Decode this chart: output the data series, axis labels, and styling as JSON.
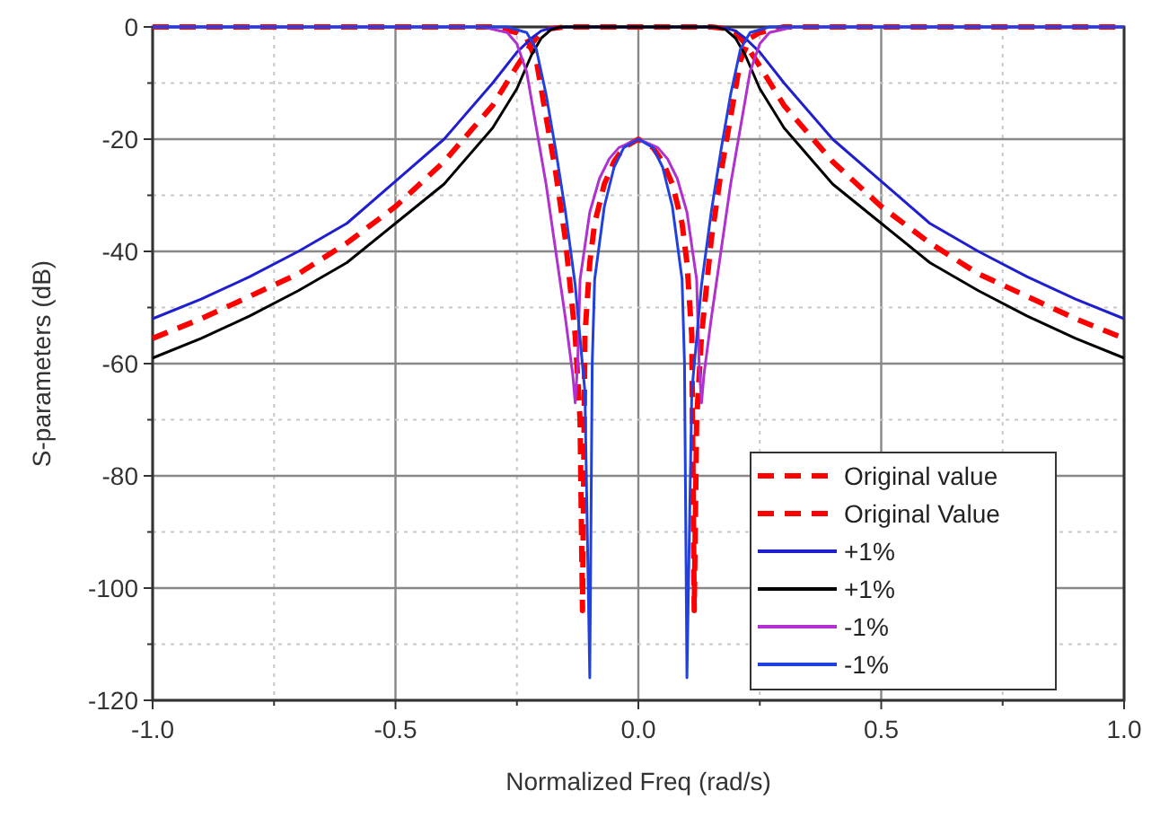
{
  "chart_data": {
    "type": "line",
    "xlabel": "Normalized Freq (rad/s)",
    "ylabel": "S-parameters (dB)",
    "xlim": [
      -1,
      1
    ],
    "ylim": [
      -120,
      0
    ],
    "xticks": [
      {
        "value": -1,
        "label": "-1.0"
      },
      {
        "value": -0.75,
        "label": null
      },
      {
        "value": -0.5,
        "label": "-0.5"
      },
      {
        "value": -0.25,
        "label": null
      },
      {
        "value": 0,
        "label": "0.0"
      },
      {
        "value": 0.25,
        "label": null
      },
      {
        "value": 0.5,
        "label": "0.5"
      },
      {
        "value": 0.75,
        "label": null
      },
      {
        "value": 1,
        "label": "1.0"
      }
    ],
    "yticks": [
      -120,
      {
        "value": -110,
        "label": null
      },
      -100,
      {
        "value": -90,
        "label": null
      },
      -80,
      {
        "value": -70,
        "label": null
      },
      -60,
      {
        "value": -50,
        "label": null
      },
      -40,
      {
        "value": -30,
        "label": null
      },
      -20,
      {
        "value": -10,
        "label": null
      },
      0
    ],
    "grid": true,
    "legend": "bottom right",
    "marker": "none",
    "series": [
      {
        "name": "Original value",
        "color": "#ff0000",
        "line_style": "dashed",
        "x": [
          -1,
          -0.9,
          -0.8,
          -0.7,
          -0.6,
          -0.5,
          -0.4,
          -0.3,
          -0.25,
          -0.22,
          -0.2,
          -0.18,
          -0.15,
          0,
          0.15,
          0.18,
          0.2,
          0.22,
          0.25,
          0.3,
          0.4,
          0.5,
          0.6,
          0.7,
          0.8,
          0.9,
          1
        ],
        "values": [
          -55.5,
          -52,
          -48,
          -44,
          -38.5,
          -32,
          -24,
          -14,
          -7,
          -3,
          -1,
          -0.3,
          0,
          0,
          0,
          -0.3,
          -1,
          -3,
          -7,
          -14,
          -24,
          -32,
          -38.5,
          -44,
          -48,
          -52,
          -55.5
        ]
      },
      {
        "name": "Original Value",
        "color": "#ff0000",
        "line_style": "dashed",
        "x": [
          -1,
          -0.3,
          -0.25,
          -0.23,
          -0.21,
          -0.19,
          -0.17,
          -0.15,
          -0.13,
          -0.12,
          -0.115,
          -0.11,
          -0.1,
          -0.09,
          -0.07,
          -0.05,
          -0.03,
          0,
          0.03,
          0.05,
          0.07,
          0.09,
          0.1,
          0.11,
          0.115,
          0.12,
          0.13,
          0.15,
          0.17,
          0.19,
          0.21,
          0.23,
          0.25,
          0.3,
          1
        ],
        "values": [
          0,
          0,
          -1,
          -2,
          -6,
          -16,
          -26,
          -38,
          -55,
          -70,
          -104,
          -55,
          -42,
          -35,
          -28,
          -24,
          -21.5,
          -20,
          -21.5,
          -24,
          -28,
          -35,
          -42,
          -55,
          -104,
          -70,
          -55,
          -38,
          -26,
          -16,
          -6,
          -2,
          -1,
          0,
          0
        ]
      },
      {
        "name": "+1%",
        "color": "#1f1fd0",
        "line_style": "solid",
        "x": [
          -1,
          -0.9,
          -0.8,
          -0.7,
          -0.6,
          -0.5,
          -0.4,
          -0.3,
          -0.25,
          -0.22,
          -0.2,
          -0.18,
          -0.15,
          0,
          0.15,
          0.18,
          0.2,
          0.22,
          0.25,
          0.3,
          0.4,
          0.5,
          0.6,
          0.7,
          0.8,
          0.9,
          1
        ],
        "values": [
          -52,
          -48.5,
          -44.5,
          -40,
          -35,
          -27.5,
          -20,
          -10,
          -4.5,
          -2,
          -0.7,
          -0.2,
          0,
          0,
          0,
          -0.2,
          -0.7,
          -2,
          -4.5,
          -10,
          -20,
          -27.5,
          -35,
          -40,
          -44.5,
          -48.5,
          -52
        ]
      },
      {
        "name": "+1%",
        "color": "#000000",
        "line_style": "solid",
        "x": [
          -1,
          -0.9,
          -0.8,
          -0.7,
          -0.6,
          -0.5,
          -0.4,
          -0.3,
          -0.25,
          -0.22,
          -0.2,
          -0.18,
          -0.16,
          0,
          0.16,
          0.18,
          0.2,
          0.22,
          0.25,
          0.3,
          0.4,
          0.5,
          0.6,
          0.7,
          0.8,
          0.9,
          1
        ],
        "values": [
          -59,
          -55.5,
          -51.5,
          -47,
          -42,
          -35,
          -28,
          -18,
          -11,
          -5,
          -2,
          -0.5,
          0,
          0,
          0,
          -0.5,
          -2,
          -5,
          -11,
          -18,
          -28,
          -35,
          -42,
          -47,
          -51.5,
          -55.5,
          -59
        ]
      },
      {
        "name": "-1%",
        "color": "#b030d0",
        "line_style": "solid",
        "x": [
          -1,
          -0.32,
          -0.27,
          -0.25,
          -0.23,
          -0.21,
          -0.19,
          -0.17,
          -0.15,
          -0.135,
          -0.13,
          -0.125,
          -0.12,
          -0.1,
          -0.08,
          -0.06,
          -0.04,
          0,
          0.04,
          0.06,
          0.08,
          0.1,
          0.12,
          0.125,
          0.13,
          0.135,
          0.15,
          0.17,
          0.19,
          0.21,
          0.23,
          0.25,
          0.27,
          0.32,
          1
        ],
        "values": [
          0,
          0,
          -1,
          -3,
          -8,
          -18,
          -28,
          -40,
          -52,
          -62,
          -67,
          -60,
          -45,
          -33,
          -27,
          -23.5,
          -21.5,
          -20,
          -21.5,
          -23.5,
          -27,
          -33,
          -45,
          -60,
          -67,
          -62,
          -52,
          -40,
          -28,
          -18,
          -8,
          -3,
          -1,
          0,
          0
        ]
      },
      {
        "name": "-1%",
        "color": "#2040e0",
        "line_style": "solid",
        "x": [
          -1,
          -0.27,
          -0.23,
          -0.21,
          -0.19,
          -0.17,
          -0.15,
          -0.13,
          -0.11,
          -0.1,
          -0.095,
          -0.09,
          -0.07,
          -0.05,
          -0.03,
          0,
          0.03,
          0.05,
          0.07,
          0.09,
          0.095,
          0.1,
          0.11,
          0.13,
          0.15,
          0.17,
          0.19,
          0.21,
          0.23,
          0.27,
          1
        ],
        "values": [
          0,
          0,
          -1,
          -4,
          -12,
          -22,
          -33,
          -46,
          -65,
          -116,
          -60,
          -45,
          -32,
          -25,
          -21.5,
          -20,
          -21.5,
          -25,
          -32,
          -45,
          -60,
          -116,
          -65,
          -46,
          -33,
          -22,
          -12,
          -4,
          -1,
          0,
          0
        ]
      }
    ]
  }
}
